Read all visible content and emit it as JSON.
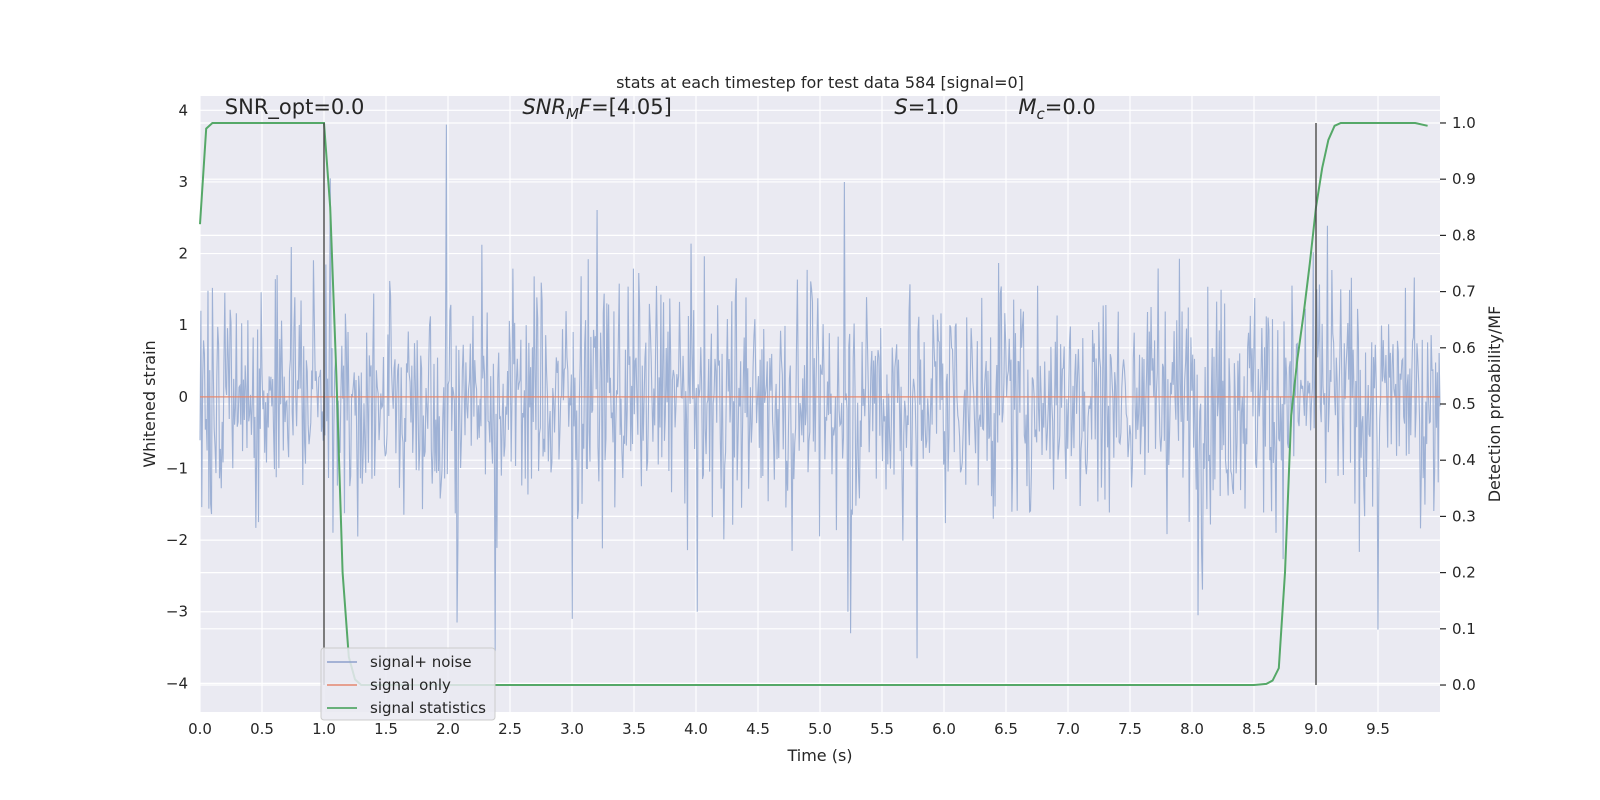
{
  "chart_data": {
    "type": "line",
    "title": "stats at each timestep for test data 584 [signal=0]",
    "xlabel": "Time (s)",
    "ylabel": "Whitened strain",
    "y2label": "Detection probability/MF",
    "xlim": [
      0.0,
      10.0
    ],
    "ylim": [
      -4.4,
      4.2
    ],
    "y2lim": [
      -0.048,
      1.048
    ],
    "x_ticks": [
      0.0,
      0.5,
      1.0,
      1.5,
      2.0,
      2.5,
      3.0,
      3.5,
      4.0,
      4.5,
      5.0,
      5.5,
      6.0,
      6.5,
      7.0,
      7.5,
      8.0,
      8.5,
      9.0,
      9.5
    ],
    "x_tick_labels": [
      "0.0",
      "0.5",
      "1.0",
      "1.5",
      "2.0",
      "2.5",
      "3.0",
      "3.5",
      "4.0",
      "4.5",
      "5.0",
      "5.5",
      "6.0",
      "6.5",
      "7.0",
      "7.5",
      "8.0",
      "8.5",
      "9.0",
      "9.5"
    ],
    "y_ticks": [
      4,
      3,
      2,
      1,
      0,
      -1,
      -2,
      -3,
      -4
    ],
    "y_tick_labels": [
      "4",
      "3",
      "2",
      "1",
      "0",
      "−1",
      "−2",
      "−3",
      "−4"
    ],
    "y2_ticks": [
      1.0,
      0.9,
      0.8,
      0.7,
      0.6,
      0.5,
      0.4,
      0.3,
      0.2,
      0.1,
      0.0
    ],
    "y2_tick_labels": [
      "1.0",
      "0.9",
      "0.8",
      "0.7",
      "0.6",
      "0.5",
      "0.4",
      "0.3",
      "0.2",
      "0.1",
      "0.0"
    ],
    "grid": true,
    "legend_position": "lower-left",
    "annotations": [
      {
        "name": "snr-opt",
        "x": 0.2,
        "y": 3.95,
        "parts": [
          {
            "text": "SNR_opt=0.0",
            "italic": false
          }
        ]
      },
      {
        "name": "snr-mf",
        "x": 2.6,
        "y": 3.95,
        "parts": [
          {
            "text": "SNR",
            "italic": true
          },
          {
            "text": "M",
            "italic": true,
            "sub": true
          },
          {
            "text": "F",
            "italic": true
          },
          {
            "text": "=[4.05]",
            "italic": false
          }
        ]
      },
      {
        "name": "s-value",
        "x": 5.6,
        "y": 3.95,
        "parts": [
          {
            "text": "S",
            "italic": true
          },
          {
            "text": "=1.0",
            "italic": false
          }
        ]
      },
      {
        "name": "mc-value",
        "x": 6.6,
        "y": 3.95,
        "parts": [
          {
            "text": "M",
            "italic": true
          },
          {
            "text": "c",
            "italic": true,
            "sub": true
          },
          {
            "text": "=0.0",
            "italic": false
          }
        ]
      }
    ],
    "vlines": [
      {
        "x": 1.0,
        "y2_range": [
          0.0,
          1.0
        ],
        "color": "#4a4a4a"
      },
      {
        "x": 9.0,
        "y2_range": [
          0.0,
          1.0
        ],
        "color": "#4a4a4a"
      }
    ],
    "noise": {
      "description": "whitened strain noise, dense envelope about +/-1.5 with spikes to about 3.8 and -3.7",
      "x_range": [
        0.0,
        10.0
      ],
      "color": "#9aaed3",
      "spikes": [
        {
          "x": 1.99,
          "y": 3.8
        },
        {
          "x": 3.0,
          "y": 3.05
        },
        {
          "x": 5.2,
          "y": 3.0
        },
        {
          "x": 1.05,
          "y": 3.05
        },
        {
          "x": 5.78,
          "y": -3.65
        },
        {
          "x": 2.38,
          "y": -3.55
        },
        {
          "x": 5.25,
          "y": -3.3
        },
        {
          "x": 2.07,
          "y": -3.15
        },
        {
          "x": 3.0,
          "y": -3.1
        },
        {
          "x": 9.5,
          "y": -3.25
        },
        {
          "x": 8.05,
          "y": -3.05
        }
      ]
    },
    "series": [
      {
        "name": "signal+ noise",
        "color": "#8da0cb"
      },
      {
        "name": "signal only",
        "color": "#e5886f",
        "x": [
          0.0,
          10.0
        ],
        "y": [
          0.0,
          0.0
        ]
      },
      {
        "name": "signal statistics",
        "color": "#55a868",
        "axis": "right",
        "x": [
          0.0,
          0.05,
          0.1,
          0.2,
          0.3,
          0.4,
          0.5,
          0.6,
          0.7,
          0.8,
          0.9,
          1.0,
          1.05,
          1.1,
          1.15,
          1.2,
          1.25,
          1.3,
          1.5,
          2.0,
          3.0,
          4.0,
          5.0,
          6.0,
          7.0,
          8.0,
          8.5,
          8.6,
          8.65,
          8.7,
          8.75,
          8.8,
          8.85,
          8.9,
          8.95,
          9.0,
          9.05,
          9.1,
          9.15,
          9.2,
          9.3,
          9.5,
          9.8,
          9.9
        ],
        "y": [
          0.82,
          0.99,
          1.0,
          1.0,
          1.0,
          1.0,
          1.0,
          1.0,
          1.0,
          1.0,
          1.0,
          1.0,
          0.85,
          0.55,
          0.2,
          0.05,
          0.01,
          0.0,
          0.0,
          0.0,
          0.0,
          0.0,
          0.0,
          0.0,
          0.0,
          0.0,
          0.0,
          0.002,
          0.008,
          0.03,
          0.2,
          0.48,
          0.58,
          0.66,
          0.75,
          0.85,
          0.92,
          0.97,
          0.995,
          1.0,
          1.0,
          1.0,
          1.0,
          0.995
        ]
      }
    ]
  }
}
